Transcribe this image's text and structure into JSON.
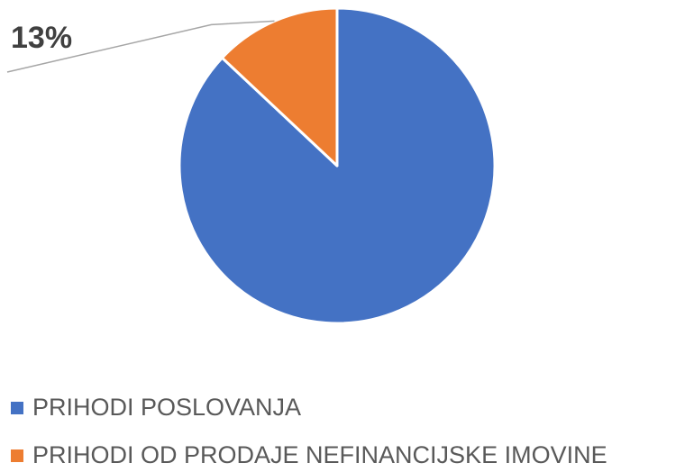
{
  "chart_data": {
    "type": "pie",
    "categories": [
      "PRIHODI POSLOVANJA",
      "PRIHODI OD PRODAJE NEFINANCIJSKE IMOVINE"
    ],
    "values": [
      87,
      13
    ],
    "value_labels": [
      null,
      "13%"
    ],
    "colors": [
      "#4472c4",
      "#ed7d31"
    ],
    "legend": "bottom"
  }
}
